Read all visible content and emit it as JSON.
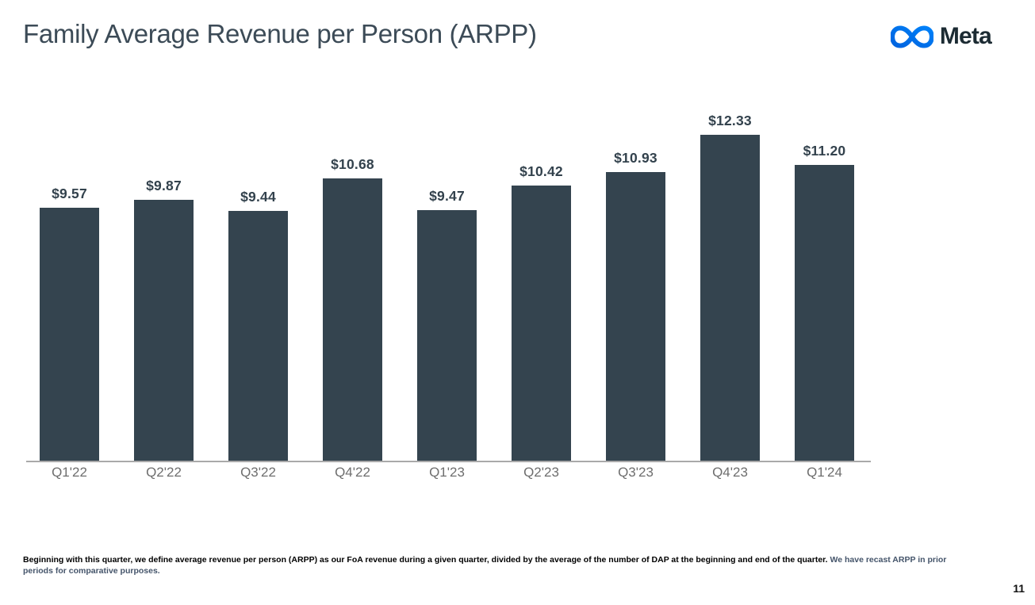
{
  "header": {
    "title": "Family Average Revenue per Person (ARPP)",
    "logo_text": "Meta"
  },
  "chart_data": {
    "type": "bar",
    "title": "Family Average Revenue per Person (ARPP)",
    "categories": [
      "Q1'22",
      "Q2'22",
      "Q3'22",
      "Q4'22",
      "Q1'23",
      "Q2'23",
      "Q3'23",
      "Q4'23",
      "Q1'24"
    ],
    "values": [
      9.57,
      9.87,
      9.44,
      10.68,
      9.47,
      10.42,
      10.93,
      12.33,
      11.2
    ],
    "value_labels": [
      "$9.57",
      "$9.87",
      "$9.44",
      "$10.68",
      "$9.47",
      "$10.42",
      "$10.93",
      "$12.33",
      "$11.20"
    ],
    "xlabel": "",
    "ylabel": "",
    "ylim": [
      0,
      13.5
    ],
    "grid": false,
    "legend": false,
    "y_axis_shown": false,
    "bar_color": "#34444F"
  },
  "colors": {
    "title-color": "#3C4B57",
    "wordmark-color": "#1C2B33",
    "bar-color": "#34444F",
    "value-label-color": "#33424D",
    "x-label-color": "#6E6E6E",
    "axis-color": "#A9A9A9",
    "footnote-color": "#000000",
    "footnote-accent-color": "#44546A",
    "logo-blue-dark": "#0064E0",
    "logo-blue-light": "#0082FB"
  },
  "footnote": {
    "text_primary": "Beginning with this quarter, we define average revenue per person (ARPP) as our FoA revenue during a given quarter, divided by the average of the number of DAP at the beginning and end of the quarter. ",
    "text_secondary": "We have recast ARPP in prior periods for comparative purposes."
  },
  "page_number": "11"
}
